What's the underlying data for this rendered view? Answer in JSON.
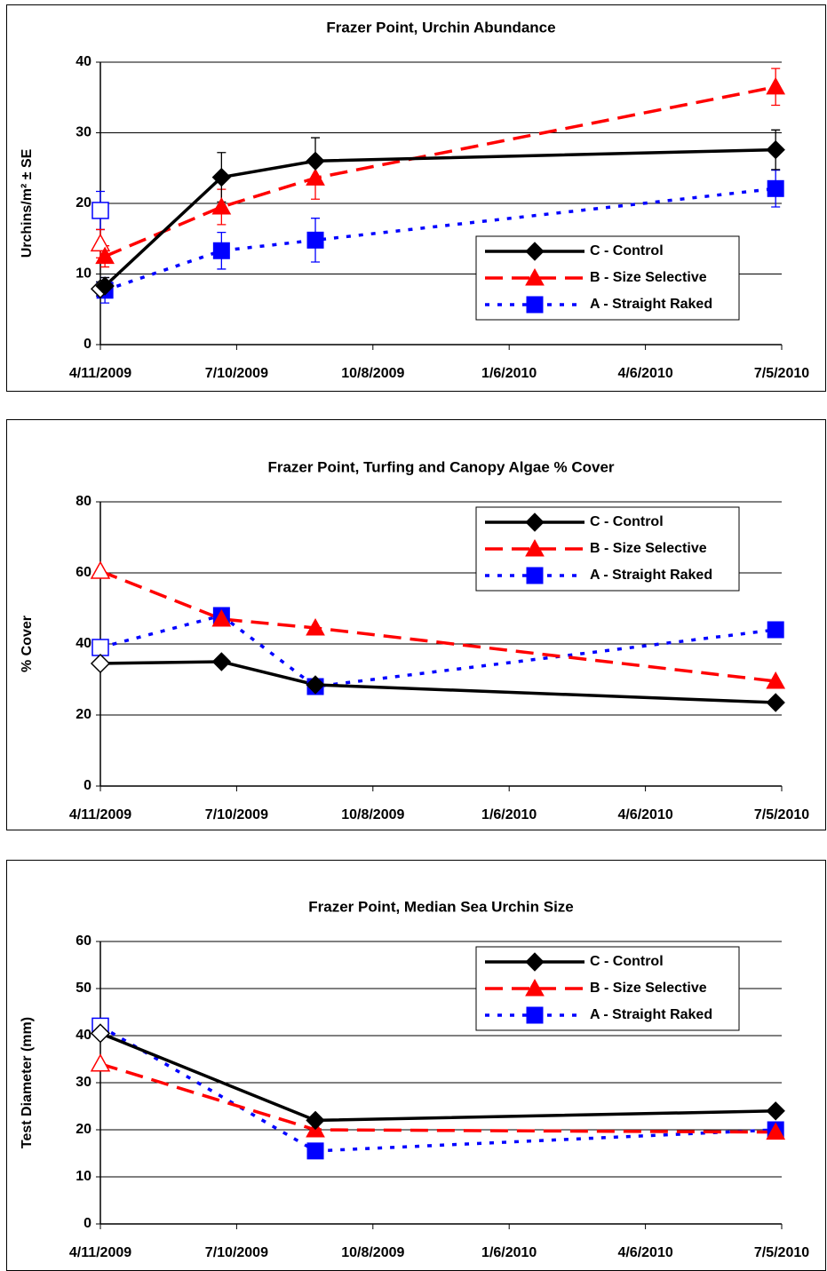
{
  "chart_data": [
    {
      "type": "line",
      "title": "Frazer Point, Urchin Abundance",
      "ylabel": "Urchins/m² ± SE",
      "x": [
        "4/14/2009",
        "6/30/2009",
        "8/31/2009",
        "7/1/2010"
      ],
      "xlim": [
        "4/11/2009",
        "7/5/2010"
      ],
      "xticks": [
        "4/11/2009",
        "7/10/2009",
        "10/8/2009",
        "1/6/2010",
        "4/6/2010",
        "7/5/2010"
      ],
      "ylim": [
        0,
        40
      ],
      "yticks": [
        0,
        10,
        20,
        30,
        40
      ],
      "grid": true,
      "legend_loc": "lower right",
      "open_x": "4/11/2009",
      "series": [
        {
          "name": "C - Control",
          "color": "#000000",
          "marker": "diamond",
          "linestyle": "solid",
          "values": [
            8.3,
            23.7,
            26.0,
            27.6
          ],
          "errors": [
            1.2,
            3.5,
            3.3,
            2.8
          ],
          "open_value": 7.9,
          "open_error": 1.0
        },
        {
          "name": "B - Size Selective",
          "color": "#ff0000",
          "marker": "triangle",
          "linestyle": "dashed",
          "values": [
            12.5,
            19.5,
            23.6,
            36.5
          ],
          "errors": [
            1.5,
            2.5,
            3.0,
            2.6
          ],
          "open_value": 14.3,
          "open_error": 2.0
        },
        {
          "name": "A - Straight Raked",
          "color": "#0000ff",
          "marker": "square",
          "linestyle": "dotted",
          "values": [
            7.7,
            13.3,
            14.8,
            22.1
          ],
          "errors": [
            1.8,
            2.6,
            3.1,
            2.6
          ],
          "open_value": 19.0,
          "open_error": 2.7
        }
      ]
    },
    {
      "type": "line",
      "title": "Frazer Point, Turfing and Canopy Algae % Cover",
      "ylabel": "% Cover",
      "x": [
        "4/11/2009",
        "6/30/2009",
        "8/31/2009",
        "7/1/2010"
      ],
      "xlim": [
        "4/11/2009",
        "7/5/2010"
      ],
      "xticks": [
        "4/11/2009",
        "7/10/2009",
        "10/8/2009",
        "1/6/2010",
        "4/6/2010",
        "7/5/2010"
      ],
      "ylim": [
        0,
        80
      ],
      "yticks": [
        0,
        20,
        40,
        60,
        80
      ],
      "grid": true,
      "legend_loc": "upper right",
      "first_marker_open": true,
      "series": [
        {
          "name": "C - Control",
          "color": "#000000",
          "marker": "diamond",
          "linestyle": "solid",
          "values": [
            34.5,
            35,
            28.5,
            23.5
          ]
        },
        {
          "name": "B - Size Selective",
          "color": "#ff0000",
          "marker": "triangle",
          "linestyle": "dashed",
          "values": [
            60.5,
            47,
            44.5,
            29.5
          ]
        },
        {
          "name": "A - Straight Raked",
          "color": "#0000ff",
          "marker": "square",
          "linestyle": "dotted",
          "values": [
            39,
            48,
            28,
            44
          ]
        }
      ]
    },
    {
      "type": "line",
      "title": "Frazer Point, Median Sea Urchin Size",
      "ylabel": "Test Diameter (mm)",
      "x": [
        "4/11/2009",
        "8/31/2009",
        "7/1/2010"
      ],
      "xlim": [
        "4/11/2009",
        "7/5/2010"
      ],
      "xticks": [
        "4/11/2009",
        "7/10/2009",
        "10/8/2009",
        "1/6/2010",
        "4/6/2010",
        "7/5/2010"
      ],
      "ylim": [
        0,
        60
      ],
      "yticks": [
        0,
        10,
        20,
        30,
        40,
        50,
        60
      ],
      "grid": true,
      "legend_loc": "upper right",
      "first_marker_open": true,
      "series": [
        {
          "name": "C - Control",
          "color": "#000000",
          "marker": "diamond",
          "linestyle": "solid",
          "values": [
            40.5,
            22,
            24
          ]
        },
        {
          "name": "B - Size Selective",
          "color": "#ff0000",
          "marker": "triangle",
          "linestyle": "dashed",
          "values": [
            34,
            20,
            19.5
          ]
        },
        {
          "name": "A - Straight Raked",
          "color": "#0000ff",
          "marker": "square",
          "linestyle": "dotted",
          "values": [
            42,
            15.5,
            20
          ]
        }
      ]
    }
  ]
}
